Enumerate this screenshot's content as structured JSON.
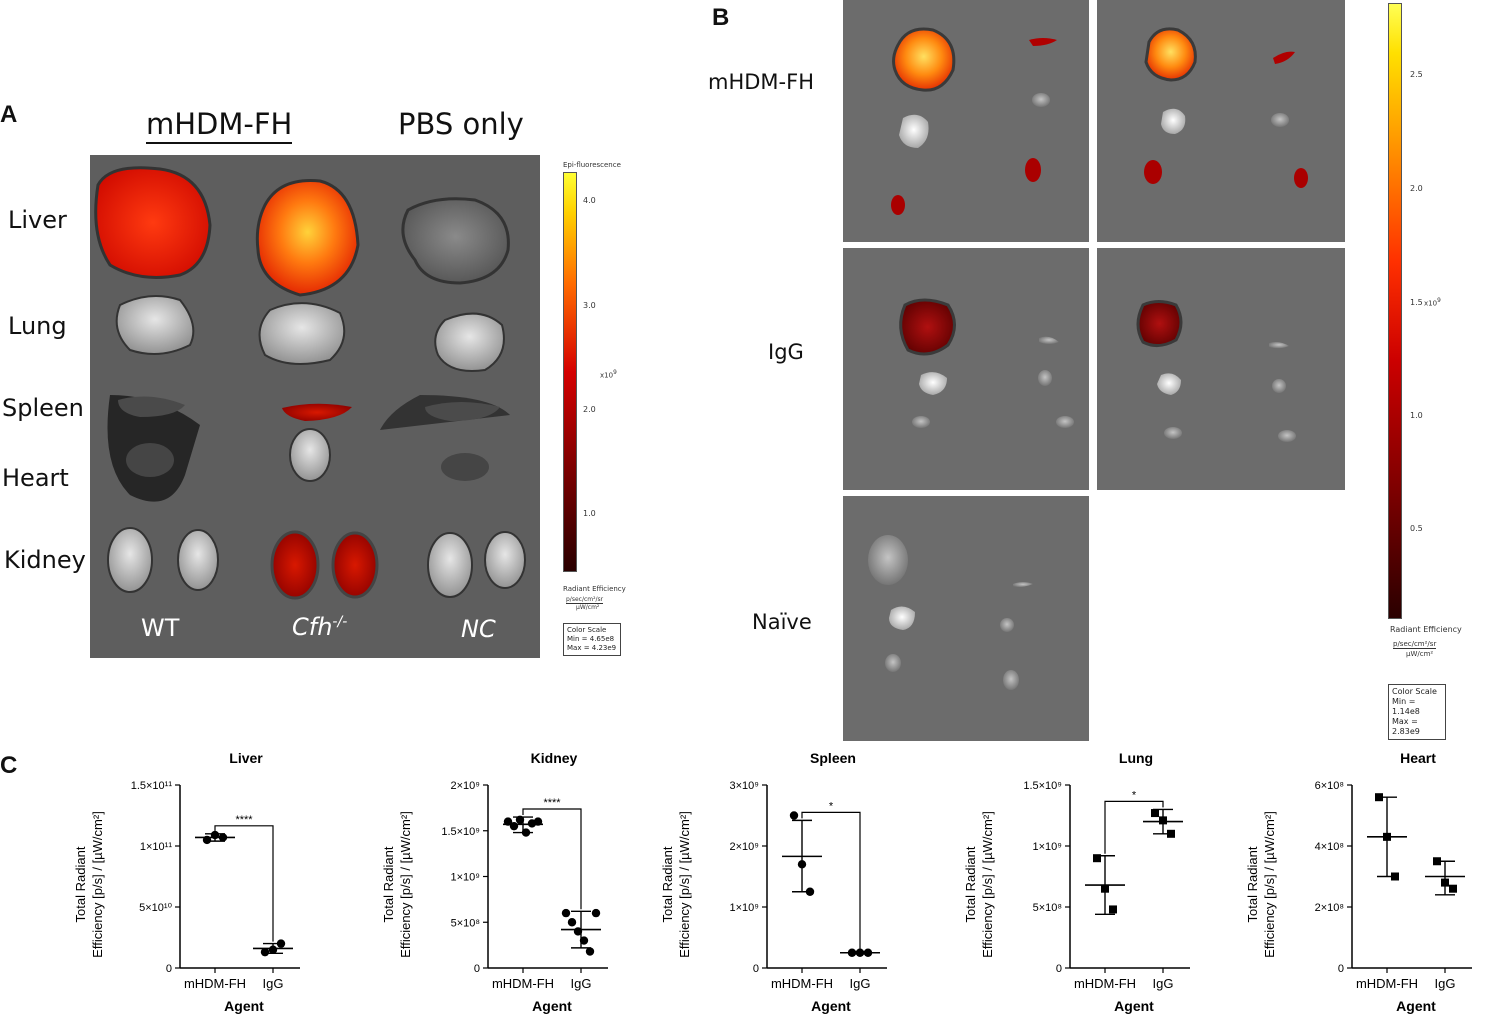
{
  "panel_a": {
    "letter": "A",
    "col_headers": [
      "mHDM-FH",
      "PBS only"
    ],
    "organs": [
      "Liver",
      "Lung",
      "Spleen",
      "Heart",
      "Kidney"
    ],
    "bottom_labels": [
      "WT",
      "Cfh",
      "-/-",
      "NC"
    ],
    "colorbar": {
      "title": "Epi-fluorescence",
      "ticks": [
        "4.0",
        "3.0",
        "2.0",
        "1.0"
      ],
      "exp": "x10",
      "exp_sup": "9",
      "unit_title": "Radiant Efficiency",
      "unit_num": "p/sec/cm²/sr",
      "unit_den": "µW/cm²",
      "scale_title": "Color Scale",
      "scale_min": "Min = 4.65e8",
      "scale_max": "Max = 4.23e9",
      "colors": {
        "low": "#2a0000",
        "mid": "#d40000",
        "high": "#ffff33"
      }
    }
  },
  "panel_b": {
    "letter": "B",
    "groups": [
      "mHDM-FH",
      "IgG",
      "Naïve"
    ],
    "colorbar": {
      "ticks": [
        "2.5",
        "2.0",
        "1.5",
        "1.0",
        "0.5"
      ],
      "exp": "x10",
      "exp_sup": "9",
      "unit_title": "Radiant Efficiency",
      "unit_num": "p/sec/cm²/sr",
      "unit_den": "µW/cm²",
      "scale_title": "Color Scale",
      "scale_min": "Min = 1.14e8",
      "scale_max": "Max = 2.83e9"
    }
  },
  "panel_c": {
    "letter": "C",
    "chart_data": [
      {
        "type": "scatter",
        "title": "Liver",
        "xlabel": "Agent",
        "ylabel_line1": "Total Radiant",
        "ylabel_line2": "Efficiency [p/s] / [µW/cm²]",
        "categories": [
          "mHDM-FH",
          "IgG"
        ],
        "ylim": [
          0,
          150000000000
        ],
        "ytick_values": [
          0,
          50000000000,
          100000000000,
          150000000000
        ],
        "ytick_labels": [
          "0",
          "5×10¹⁰",
          "1×10¹¹",
          "1.5×10¹¹"
        ],
        "marker": "circle",
        "points": [
          [
            105000000000,
            109000000000,
            107000000000
          ],
          [
            13000000000,
            15000000000,
            20000000000
          ]
        ],
        "mean": [
          107000000000,
          16000000000
        ],
        "sd_low": [
          104000000000,
          12000000000
        ],
        "sd_high": [
          110000000000,
          20000000000
        ],
        "significance": "****"
      },
      {
        "type": "scatter",
        "title": "Kidney",
        "xlabel": "Agent",
        "ylabel_line1": "Total Radiant",
        "ylabel_line2": "Efficiency [p/s] / [µW/cm²]",
        "categories": [
          "mHDM-FH",
          "IgG"
        ],
        "ylim": [
          0,
          2000000000
        ],
        "ytick_values": [
          0,
          500000000,
          1000000000,
          1500000000,
          2000000000
        ],
        "ytick_labels": [
          "0",
          "5×10⁸",
          "1×10⁹",
          "1.5×10⁹",
          "2×10⁹"
        ],
        "marker": "circle",
        "points": [
          [
            1600000000,
            1550000000,
            1620000000,
            1480000000,
            1580000000,
            1600000000
          ],
          [
            600000000,
            500000000,
            400000000,
            300000000,
            180000000,
            600000000
          ]
        ],
        "mean": [
          1570000000,
          420000000
        ],
        "sd_low": [
          1480000000,
          220000000
        ],
        "sd_high": [
          1650000000,
          620000000
        ],
        "significance": "****"
      },
      {
        "type": "scatter",
        "title": "Spleen",
        "xlabel": "Agent",
        "ylabel_line1": "Total Radiant",
        "ylabel_line2": "Efficiency [p/s] / [µW/cm²]",
        "categories": [
          "mHDM-FH",
          "IgG"
        ],
        "ylim": [
          0,
          3000000000
        ],
        "ytick_values": [
          0,
          1000000000,
          2000000000,
          3000000000
        ],
        "ytick_labels": [
          "0",
          "1×10⁹",
          "2×10⁹",
          "3×10⁹"
        ],
        "marker": "circle",
        "points": [
          [
            2500000000,
            1700000000,
            1250000000
          ],
          [
            250000000,
            250000000,
            250000000
          ]
        ],
        "mean": [
          1830000000,
          250000000
        ],
        "sd_low": [
          1250000000,
          230000000
        ],
        "sd_high": [
          2420000000,
          270000000
        ],
        "significance": "*"
      },
      {
        "type": "scatter",
        "title": "Lung",
        "xlabel": "Agent",
        "ylabel_line1": "Total Radiant",
        "ylabel_line2": "Efficiency [p/s] / [µW/cm²]",
        "categories": [
          "mHDM-FH",
          "IgG"
        ],
        "ylim": [
          0,
          1500000000
        ],
        "ytick_values": [
          0,
          500000000,
          1000000000,
          1500000000
        ],
        "ytick_labels": [
          "0",
          "5×10⁸",
          "1×10⁹",
          "1.5×10⁹"
        ],
        "marker": "square",
        "points": [
          [
            900000000,
            650000000,
            480000000
          ],
          [
            1270000000,
            1210000000,
            1100000000
          ]
        ],
        "mean": [
          680000000,
          1200000000
        ],
        "sd_low": [
          440000000,
          1100000000
        ],
        "sd_high": [
          920000000,
          1300000000
        ],
        "significance": "*"
      },
      {
        "type": "scatter",
        "title": "Heart",
        "xlabel": "Agent",
        "ylabel_line1": "Total Radiant",
        "ylabel_line2": "Efficiency [p/s] / [µW/cm²]",
        "categories": [
          "mHDM-FH",
          "IgG"
        ],
        "ylim": [
          0,
          600000000
        ],
        "ytick_values": [
          0,
          200000000,
          400000000,
          600000000
        ],
        "ytick_labels": [
          "0",
          "2×10⁸",
          "4×10⁸",
          "6×10⁸"
        ],
        "marker": "square",
        "points": [
          [
            560000000,
            430000000,
            300000000
          ],
          [
            350000000,
            280000000,
            260000000
          ]
        ],
        "mean": [
          430000000,
          300000000
        ],
        "sd_low": [
          300000000,
          240000000
        ],
        "sd_high": [
          560000000,
          350000000
        ],
        "significance": ""
      }
    ]
  }
}
